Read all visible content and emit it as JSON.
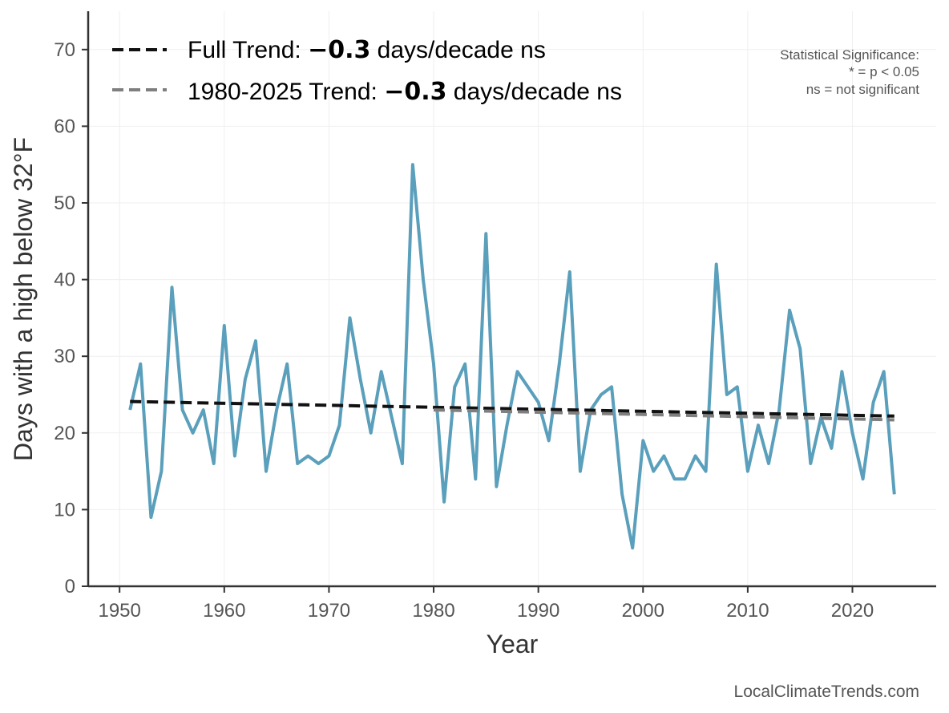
{
  "chart_data": {
    "type": "line",
    "xlabel": "Year",
    "ylabel": "Days with a high below 32°F",
    "xlim": [
      1947,
      2028
    ],
    "ylim": [
      0,
      75
    ],
    "xticks": [
      1950,
      1960,
      1970,
      1980,
      1990,
      2000,
      2010,
      2020
    ],
    "yticks": [
      0,
      10,
      20,
      30,
      40,
      50,
      60,
      70
    ],
    "grid": true,
    "legend_position": "top-left",
    "series": [
      {
        "name": "Days with a high below 32°F",
        "color": "#5a9fbb",
        "x": [
          1951,
          1952,
          1953,
          1954,
          1955,
          1956,
          1957,
          1958,
          1959,
          1960,
          1961,
          1962,
          1963,
          1964,
          1965,
          1966,
          1967,
          1968,
          1969,
          1970,
          1971,
          1972,
          1973,
          1974,
          1975,
          1976,
          1977,
          1978,
          1979,
          1980,
          1981,
          1982,
          1983,
          1984,
          1985,
          1986,
          1987,
          1988,
          1989,
          1990,
          1991,
          1992,
          1993,
          1994,
          1995,
          1996,
          1997,
          1998,
          1999,
          2000,
          2001,
          2002,
          2003,
          2004,
          2005,
          2006,
          2007,
          2008,
          2009,
          2010,
          2011,
          2012,
          2013,
          2014,
          2015,
          2016,
          2017,
          2018,
          2019,
          2020,
          2021,
          2022,
          2023,
          2024
        ],
        "values": [
          23,
          29,
          9,
          15,
          39,
          23,
          20,
          23,
          16,
          34,
          17,
          27,
          32,
          15,
          23,
          29,
          16,
          17,
          16,
          17,
          21,
          35,
          27,
          20,
          28,
          22,
          16,
          55,
          40,
          29,
          11,
          26,
          29,
          14,
          46,
          13,
          21,
          28,
          26,
          24,
          19,
          29,
          41,
          15,
          23,
          25,
          26,
          12,
          5,
          19,
          15,
          17,
          14,
          14,
          17,
          15,
          42,
          25,
          26,
          15,
          21,
          16,
          23,
          36,
          31,
          16,
          22,
          18,
          28,
          20,
          14,
          24,
          28,
          12
        ]
      },
      {
        "name": "Full Trend",
        "color": "#111111",
        "style": "dashed",
        "x": [
          1951,
          2024
        ],
        "values": [
          24.1,
          22.2
        ]
      },
      {
        "name": "1980-2025 Trend",
        "color": "#7f7f7f",
        "style": "dashed",
        "x": [
          1980,
          2024
        ],
        "values": [
          23.0,
          21.7
        ]
      }
    ],
    "legend": [
      {
        "prefix": "Full Trend: ",
        "value": "−0.3",
        "suffix": " days/decade ns",
        "color": "#111111"
      },
      {
        "prefix": "1980-2025 Trend: ",
        "value": "−0.3",
        "suffix": " days/decade ns",
        "color": "#7f7f7f"
      }
    ],
    "annotations": {
      "significance": [
        "Statistical Significance:",
        "* = p < 0.05",
        "ns = not significant"
      ],
      "credit": "LocalClimateTrends.com"
    }
  }
}
